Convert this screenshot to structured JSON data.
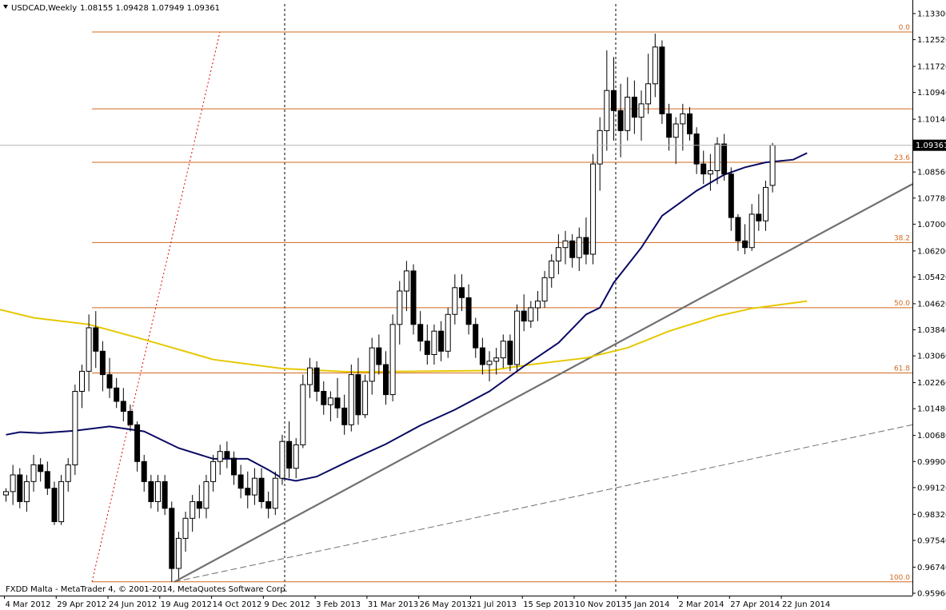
{
  "header": {
    "symbol": "USDCAD,Weekly",
    "ohlc": "1.08155 1.09428 1.07949 1.09361"
  },
  "footer": {
    "copyright": "FXDD Malta - MetaTrader 4, © 2001-2014, MetaQuotes Software Corp."
  },
  "colors": {
    "bull_body": "#ffffff",
    "bear_body": "#000000",
    "ma_short": "#0a0a64",
    "ma_long": "#e6c800",
    "fibo": "#d2691e",
    "trendline": "#707070",
    "price_line": "#b4b4b4"
  },
  "chart_data": {
    "type": "candlestick",
    "timeframe": "Weekly",
    "ylim": [
      0.9596,
      1.133
    ],
    "y_ticks": [
      "1.13300",
      "1.12520",
      "1.11720",
      "1.10940",
      "1.10140",
      "1.08560",
      "1.07780",
      "1.07000",
      "1.06200",
      "1.05420",
      "1.04620",
      "1.03840",
      "1.03060",
      "1.02260",
      "1.01480",
      "1.00680",
      "0.99900",
      "0.99120",
      "0.98320",
      "0.97540",
      "0.96740",
      "0.95960"
    ],
    "x_labels": [
      "4 Mar 2012",
      "29 Apr 2012",
      "24 Jun 2012",
      "19 Aug 2012",
      "14 Oct 2012",
      "9 Dec 2012",
      "3 Feb 2013",
      "31 Mar 2013",
      "26 May 2013",
      "21 Jul 2013",
      "15 Sep 2013",
      "10 Nov 2013",
      "5 Jan 2014",
      "2 Mar 2014",
      "27 Apr 2014",
      "22 Jun 2014"
    ],
    "current_price": "1.09361",
    "fibonacci": [
      {
        "level": "0.0",
        "price": 1.1275
      },
      {
        "level": "23.6",
        "price": 1.0885
      },
      {
        "level": "38.2",
        "price": 1.0645
      },
      {
        "level": "50.0",
        "price": 1.045
      },
      {
        "level": "61.8",
        "price": 1.0255
      },
      {
        "level": "100.0",
        "price": 0.963
      }
    ],
    "extra_level": 1.1045,
    "candles": [
      [
        0.989,
        0.991,
        0.987,
        0.99
      ],
      [
        0.99,
        0.998,
        0.986,
        0.995
      ],
      [
        0.995,
        0.997,
        0.985,
        0.987
      ],
      [
        0.987,
        0.995,
        0.984,
        0.993
      ],
      [
        0.993,
        1.001,
        0.99,
        0.998
      ],
      [
        0.998,
        1.0,
        0.993,
        0.996
      ],
      [
        0.996,
        0.999,
        0.989,
        0.991
      ],
      [
        0.991,
        0.993,
        0.98,
        0.981
      ],
      [
        0.981,
        0.995,
        0.98,
        0.993
      ],
      [
        0.993,
        1.0,
        0.99,
        0.998
      ],
      [
        0.998,
        1.022,
        0.995,
        1.02
      ],
      [
        1.02,
        1.028,
        1.015,
        1.026
      ],
      [
        1.026,
        1.043,
        1.02,
        1.039
      ],
      [
        1.039,
        1.044,
        1.027,
        1.032
      ],
      [
        1.032,
        1.035,
        1.02,
        1.025
      ],
      [
        1.025,
        1.03,
        1.018,
        1.021
      ],
      [
        1.021,
        1.024,
        1.015,
        1.017
      ],
      [
        1.017,
        1.021,
        1.011,
        1.014
      ],
      [
        1.014,
        1.016,
        1.008,
        1.01
      ],
      [
        1.01,
        1.011,
        0.996,
        0.999
      ],
      [
        0.999,
        1.001,
        0.99,
        0.993
      ],
      [
        0.993,
        0.995,
        0.985,
        0.987
      ],
      [
        0.987,
        0.995,
        0.984,
        0.993
      ],
      [
        0.993,
        0.995,
        0.983,
        0.985
      ],
      [
        0.985,
        0.987,
        0.963,
        0.967
      ],
      [
        0.967,
        0.978,
        0.964,
        0.976
      ],
      [
        0.976,
        0.984,
        0.972,
        0.982
      ],
      [
        0.982,
        0.989,
        0.978,
        0.987
      ],
      [
        0.987,
        0.992,
        0.982,
        0.985
      ],
      [
        0.985,
        0.995,
        0.982,
        0.993
      ],
      [
        0.993,
        1.001,
        0.99,
        0.999
      ],
      [
        0.999,
        1.004,
        0.995,
        1.002
      ],
      [
        1.002,
        1.005,
        0.997,
        1.0
      ],
      [
        1.0,
        1.002,
        0.992,
        0.995
      ],
      [
        0.995,
        0.998,
        0.988,
        0.991
      ],
      [
        0.991,
        0.996,
        0.985,
        0.989
      ],
      [
        0.989,
        0.997,
        0.986,
        0.994
      ],
      [
        0.994,
        0.997,
        0.985,
        0.987
      ],
      [
        0.987,
        0.99,
        0.982,
        0.985
      ],
      [
        0.985,
        0.996,
        0.983,
        0.994
      ],
      [
        0.994,
        1.007,
        0.992,
        1.005
      ],
      [
        1.005,
        1.011,
        0.994,
        0.997
      ],
      [
        0.997,
        1.006,
        0.994,
        1.004
      ],
      [
        1.004,
        1.025,
        1.003,
        1.022
      ],
      [
        1.022,
        1.03,
        1.018,
        1.027
      ],
      [
        1.027,
        1.029,
        1.017,
        1.02
      ],
      [
        1.02,
        1.023,
        1.013,
        1.016
      ],
      [
        1.016,
        1.02,
        1.011,
        1.018
      ],
      [
        1.018,
        1.024,
        1.012,
        1.015
      ],
      [
        1.015,
        1.019,
        1.007,
        1.01
      ],
      [
        1.01,
        1.028,
        1.008,
        1.025
      ],
      [
        1.025,
        1.03,
        1.01,
        1.013
      ],
      [
        1.013,
        1.025,
        1.012,
        1.023
      ],
      [
        1.023,
        1.036,
        1.019,
        1.033
      ],
      [
        1.033,
        1.037,
        1.025,
        1.028
      ],
      [
        1.028,
        1.032,
        1.016,
        1.019
      ],
      [
        1.019,
        1.043,
        1.017,
        1.04
      ],
      [
        1.04,
        1.053,
        1.034,
        1.05
      ],
      [
        1.05,
        1.059,
        1.044,
        1.056
      ],
      [
        1.056,
        1.058,
        1.037,
        1.04
      ],
      [
        1.04,
        1.044,
        1.032,
        1.035
      ],
      [
        1.035,
        1.04,
        1.028,
        1.031
      ],
      [
        1.031,
        1.04,
        1.028,
        1.038
      ],
      [
        1.038,
        1.041,
        1.029,
        1.032
      ],
      [
        1.032,
        1.045,
        1.03,
        1.043
      ],
      [
        1.043,
        1.055,
        1.04,
        1.051
      ],
      [
        1.051,
        1.055,
        1.044,
        1.048
      ],
      [
        1.048,
        1.052,
        1.037,
        1.04
      ],
      [
        1.04,
        1.042,
        1.03,
        1.033
      ],
      [
        1.033,
        1.036,
        1.025,
        1.028
      ],
      [
        1.028,
        1.032,
        1.023,
        1.029
      ],
      [
        1.029,
        1.033,
        1.025,
        1.03
      ],
      [
        1.03,
        1.037,
        1.027,
        1.035
      ],
      [
        1.035,
        1.037,
        1.026,
        1.028
      ],
      [
        1.028,
        1.046,
        1.026,
        1.044
      ],
      [
        1.044,
        1.049,
        1.038,
        1.041
      ],
      [
        1.041,
        1.047,
        1.039,
        1.045
      ],
      [
        1.045,
        1.05,
        1.041,
        1.047
      ],
      [
        1.047,
        1.056,
        1.045,
        1.054
      ],
      [
        1.054,
        1.061,
        1.051,
        1.059
      ],
      [
        1.059,
        1.067,
        1.055,
        1.063
      ],
      [
        1.063,
        1.068,
        1.058,
        1.065
      ],
      [
        1.065,
        1.067,
        1.057,
        1.06
      ],
      [
        1.06,
        1.069,
        1.056,
        1.066
      ],
      [
        1.066,
        1.072,
        1.058,
        1.061
      ],
      [
        1.061,
        1.091,
        1.058,
        1.088
      ],
      [
        1.088,
        1.102,
        1.08,
        1.098
      ],
      [
        1.098,
        1.122,
        1.092,
        1.11
      ],
      [
        1.11,
        1.12,
        1.095,
        1.104
      ],
      [
        1.104,
        1.112,
        1.09,
        1.098
      ],
      [
        1.098,
        1.114,
        1.095,
        1.108
      ],
      [
        1.108,
        1.113,
        1.097,
        1.102
      ],
      [
        1.102,
        1.11,
        1.095,
        1.106
      ],
      [
        1.106,
        1.121,
        1.103,
        1.112
      ],
      [
        1.112,
        1.127,
        1.108,
        1.123
      ],
      [
        1.123,
        1.125,
        1.1,
        1.103
      ],
      [
        1.103,
        1.106,
        1.092,
        1.096
      ],
      [
        1.096,
        1.102,
        1.088,
        1.1
      ],
      [
        1.1,
        1.106,
        1.092,
        1.103
      ],
      [
        1.103,
        1.105,
        1.095,
        1.097
      ],
      [
        1.097,
        1.099,
        1.085,
        1.088
      ],
      [
        1.088,
        1.092,
        1.082,
        1.085
      ],
      [
        1.085,
        1.091,
        1.08,
        1.086
      ],
      [
        1.086,
        1.096,
        1.082,
        1.094
      ],
      [
        1.094,
        1.097,
        1.083,
        1.085
      ],
      [
        1.085,
        1.087,
        1.068,
        1.072
      ],
      [
        1.072,
        1.073,
        1.062,
        1.065
      ],
      [
        1.065,
        1.07,
        1.061,
        1.063
      ],
      [
        1.063,
        1.076,
        1.062,
        1.073
      ],
      [
        1.073,
        1.079,
        1.068,
        1.071
      ],
      [
        1.071,
        1.083,
        1.068,
        1.081
      ],
      [
        1.0816,
        1.0943,
        1.0795,
        1.0936
      ]
    ],
    "ma_short": [
      [
        0,
        1.007
      ],
      [
        2,
        1.0078
      ],
      [
        5,
        1.0075
      ],
      [
        10,
        1.0082
      ],
      [
        15,
        1.0095
      ],
      [
        20,
        1.008
      ],
      [
        25,
        1.003
      ],
      [
        30,
        0.9998
      ],
      [
        35,
        0.9998
      ],
      [
        38,
        0.9965
      ],
      [
        40,
        0.994
      ],
      [
        42,
        0.9932
      ],
      [
        45,
        0.9945
      ],
      [
        50,
        0.9995
      ],
      [
        55,
        1.0042
      ],
      [
        60,
        1.0098
      ],
      [
        65,
        1.0145
      ],
      [
        70,
        1.02
      ],
      [
        75,
        1.0275
      ],
      [
        80,
        1.0345
      ],
      [
        84,
        1.043
      ],
      [
        86,
        1.045
      ],
      [
        88,
        1.0525
      ],
      [
        92,
        1.063
      ],
      [
        95,
        1.0725
      ],
      [
        100,
        1.08
      ],
      [
        104,
        1.0848
      ],
      [
        107,
        1.087
      ],
      [
        110,
        1.0885
      ],
      [
        114,
        1.0893
      ],
      [
        116,
        1.0913
      ]
    ],
    "ma_long": [
      [
        -1,
        1.0445
      ],
      [
        4,
        1.042
      ],
      [
        12,
        1.04
      ],
      [
        20,
        1.0355
      ],
      [
        30,
        1.0295
      ],
      [
        40,
        1.0268
      ],
      [
        50,
        1.0258
      ],
      [
        60,
        1.026
      ],
      [
        70,
        1.0262
      ],
      [
        76,
        1.028
      ],
      [
        84,
        1.03
      ],
      [
        90,
        1.033
      ],
      [
        96,
        1.038
      ],
      [
        103,
        1.0425
      ],
      [
        108,
        1.0448
      ],
      [
        116,
        1.047
      ]
    ]
  }
}
